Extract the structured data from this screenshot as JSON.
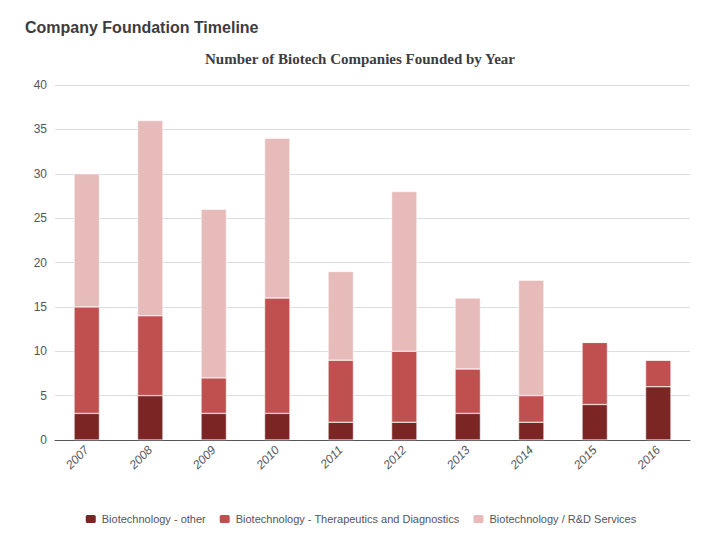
{
  "chart_data": {
    "type": "bar",
    "title": "Number of Biotech Companies Founded by Year",
    "subtitle": "Company Foundation Timeline",
    "categories": [
      "2007",
      "2008",
      "2009",
      "2010",
      "2011",
      "2012",
      "2013",
      "2014",
      "2015",
      "2016"
    ],
    "series": [
      {
        "name": "Biotechnology - other",
        "color": "#7B2525",
        "values": [
          3,
          5,
          3,
          3,
          2,
          2,
          3,
          2,
          4,
          6
        ]
      },
      {
        "name": "Biotechnology - Therapeutics and Diagnostics",
        "color": "#C05050",
        "values": [
          12,
          9,
          4,
          13,
          7,
          8,
          5,
          3,
          7,
          3
        ]
      },
      {
        "name": "Biotechnology / R&D Services",
        "color": "#E8BBBB",
        "values": [
          15,
          22,
          19,
          18,
          10,
          18,
          8,
          13,
          0,
          0
        ]
      }
    ],
    "stacked": true,
    "ylim": [
      0,
      40
    ],
    "yticks": [
      0,
      5,
      10,
      15,
      20,
      25,
      30,
      35,
      40
    ],
    "grid": true,
    "legend": "bottom"
  }
}
